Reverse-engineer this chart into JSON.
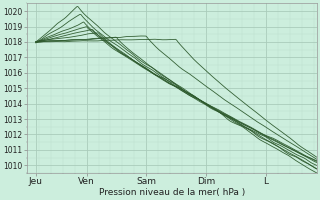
{
  "xlabel": "Pression niveau de la mer( hPa )",
  "ylim": [
    1009.5,
    1020.5
  ],
  "xlim": [
    0,
    4.85
  ],
  "yticks": [
    1010,
    1011,
    1012,
    1013,
    1014,
    1015,
    1016,
    1017,
    1018,
    1019,
    1020
  ],
  "xtick_positions": [
    0.15,
    1.0,
    2.0,
    3.0,
    4.0
  ],
  "xtick_labels": [
    "Jeu",
    "Ven",
    "Sam",
    "Dim",
    "L"
  ],
  "bg_color": "#cceedd",
  "grid_major_color": "#aaccbb",
  "grid_minor_color": "#bbddcc",
  "line_color": "#2d5a2d",
  "spine_color": "#999999"
}
